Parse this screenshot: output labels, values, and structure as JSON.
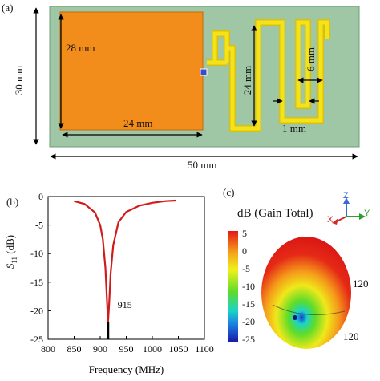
{
  "panel_a": {
    "label": "(a)",
    "board_width": "50 mm",
    "board_height": "30 mm",
    "patch_width": "24 mm",
    "patch_height": "28 mm",
    "meander_height": "24 mm",
    "meander_gap": "6 mm",
    "trace_width": "1 mm",
    "colors": {
      "substrate": "#9fc7a6",
      "patch": "#f28c1a",
      "trace": "#f4e21a"
    }
  },
  "panel_b": {
    "label": "(b)",
    "chart_data": {
      "type": "line",
      "xlabel": "Frequency (MHz)",
      "ylabel": "S11 (dB)",
      "xlim": [
        800,
        1100
      ],
      "ylim": [
        -25,
        0
      ],
      "x_ticks": [
        800,
        850,
        900,
        950,
        1000,
        1050,
        1100
      ],
      "y_ticks": [
        0,
        -5,
        -10,
        -15,
        -20,
        -25
      ],
      "annotation": "915",
      "series": [
        {
          "color": "#d11a1a",
          "x": [
            850,
            870,
            890,
            900,
            905,
            910,
            913,
            915,
            917,
            920,
            925,
            935,
            950,
            975,
            1000,
            1025,
            1045
          ],
          "y": [
            -0.8,
            -1.3,
            -2.8,
            -5.0,
            -7.5,
            -12.5,
            -18.0,
            -22.0,
            -19.0,
            -13.5,
            -8.5,
            -4.5,
            -2.7,
            -1.6,
            -1.1,
            -0.8,
            -0.7
          ]
        }
      ]
    }
  },
  "panel_c": {
    "label": "(c)",
    "legend_title": "dB (Gain Total)",
    "legend_ticks": [
      "5",
      "0",
      "-5",
      "-10",
      "-15",
      "-20",
      "-25"
    ],
    "angle_label_top": "120",
    "angle_label_bottom": "120",
    "axes": {
      "z": "Z",
      "y": "Y",
      "x": "X"
    }
  }
}
